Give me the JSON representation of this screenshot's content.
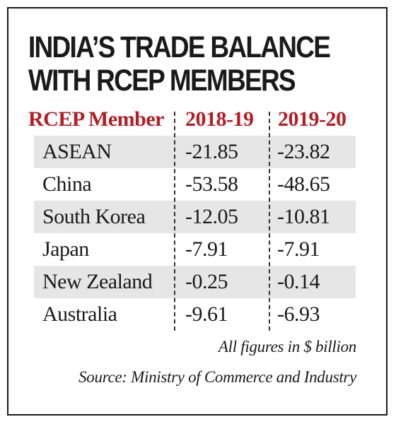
{
  "title_lines": [
    "INDIA’S TRADE BALANCE",
    "WITH RCEP MEMBERS"
  ],
  "colors": {
    "header": "#b61d23",
    "shade": "#e6e6e6",
    "text": "#1a1a1a"
  },
  "chart_data": {
    "type": "table",
    "title": "INDIA’S TRADE BALANCE WITH RCEP MEMBERS",
    "columns": [
      "RCEP Member",
      "2018-19",
      "2019-20"
    ],
    "rows": [
      [
        "ASEAN",
        "-21.85",
        "-23.82"
      ],
      [
        "China",
        "-53.58",
        "-48.65"
      ],
      [
        "South Korea",
        "-12.05",
        "-10.81"
      ],
      [
        "Japan",
        "-7.91",
        "-7.91"
      ],
      [
        "New Zealand",
        "-0.25",
        "-0.14"
      ],
      [
        "Australia",
        "-9.61",
        "-6.93"
      ]
    ],
    "unit_note": "All figures in $ billion",
    "source": "Source: Ministry of Commerce and Industry"
  }
}
